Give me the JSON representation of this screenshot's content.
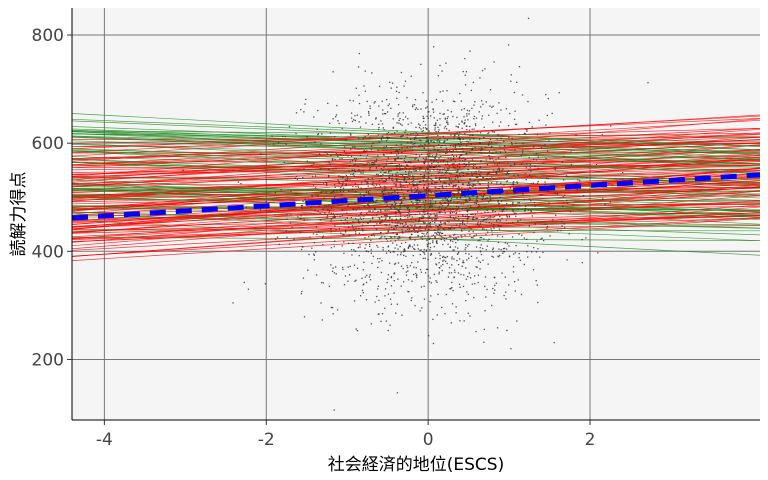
{
  "chart_data": {
    "type": "scatter",
    "xlabel": "社会経済的地位(ESCS)",
    "ylabel": "読解力得点",
    "xlim": [
      -4.4,
      4.1
    ],
    "ylim": [
      88,
      850
    ],
    "x_ticks": [
      -4,
      -2,
      0,
      2
    ],
    "x_tick_labels": [
      "-4",
      "-2",
      "0",
      "2"
    ],
    "y_ticks": [
      200,
      400,
      600,
      800
    ],
    "y_tick_labels": [
      "200",
      "400",
      "600",
      "800"
    ],
    "grid": true,
    "legend": "none",
    "background": "#f5f5f5",
    "scatter_points": {
      "color": "#333333",
      "count": 2600,
      "x_center": 0.0,
      "x_sd": 0.75,
      "y_center": 505,
      "y_sd": 95
    },
    "overall_regression": {
      "name": "",
      "intercept": 503,
      "slope": 9.4,
      "color": "#0000ff",
      "style": "dashed"
    },
    "school_lines": {
      "count": 160,
      "x_range": [
        -4.4,
        4.1
      ],
      "colors": {
        "positive_slope": "#ff0000",
        "negative_slope": "#228b22"
      },
      "intercept_range": [
        420,
        620
      ],
      "slope_range": [
        -8,
        14
      ]
    }
  }
}
